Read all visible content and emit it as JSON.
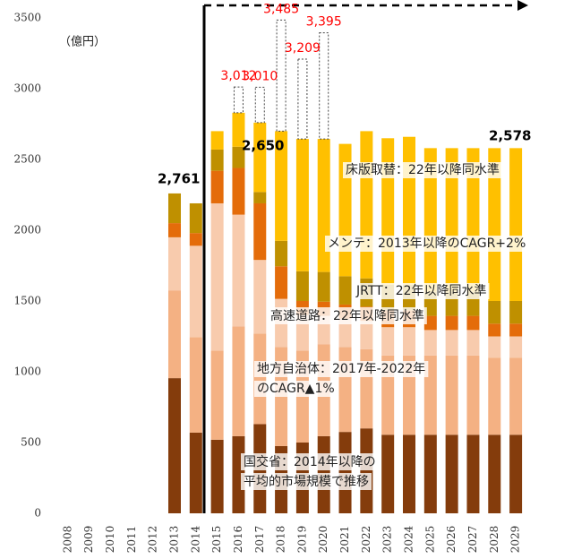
{
  "chart_data": {
    "type": "stacked_bar",
    "unit_label": "（億円）",
    "categories": [
      "2008",
      "2009",
      "2010",
      "2011",
      "2012",
      "2013",
      "2014",
      "2015",
      "2016",
      "2017",
      "2018",
      "2019",
      "2020",
      "2021",
      "2022",
      "2023",
      "2024",
      "2025",
      "2026",
      "2027",
      "2028",
      "2029"
    ],
    "series": [
      {
        "color": "#843C0C",
        "values": [
          null,
          null,
          null,
          null,
          null,
          955,
          570,
          520,
          545,
          630,
          475,
          500,
          545,
          575,
          600,
          555,
          555,
          555,
          555,
          555,
          555,
          555
        ]
      },
      {
        "color": "#F4B183",
        "values": [
          null,
          null,
          null,
          null,
          null,
          620,
          675,
          630,
          775,
          640,
          700,
          650,
          650,
          600,
          560,
          560,
          560,
          560,
          560,
          560,
          545,
          545
        ]
      },
      {
        "color": "#F8CBAD",
        "values": [
          null,
          null,
          null,
          null,
          null,
          375,
          645,
          1040,
          790,
          520,
          340,
          250,
          200,
          200,
          200,
          200,
          200,
          180,
          180,
          180,
          150,
          150
        ]
      },
      {
        "color": "#E46C0A",
        "values": [
          null,
          null,
          null,
          null,
          null,
          100,
          90,
          230,
          330,
          400,
          230,
          100,
          100,
          100,
          100,
          120,
          120,
          100,
          100,
          100,
          90,
          90
        ]
      },
      {
        "color": "#BF9000",
        "values": [
          null,
          null,
          null,
          null,
          null,
          210,
          210,
          150,
          150,
          80,
          180,
          210,
          210,
          200,
          200,
          180,
          180,
          170,
          170,
          170,
          160,
          160
        ]
      },
      {
        "color": "#FFC000",
        "values": [
          null,
          null,
          null,
          null,
          null,
          0,
          0,
          130,
          240,
          490,
          775,
          935,
          940,
          935,
          1040,
          1035,
          1045,
          1015,
          1015,
          1015,
          1080,
          1080
        ]
      }
    ],
    "dashed_totals": [
      {
        "category": "2016",
        "value": 3012,
        "label": "3,012"
      },
      {
        "category": "2017",
        "value": 3010,
        "label": "3,010"
      },
      {
        "category": "2018",
        "value": 3485,
        "label": "3,485"
      },
      {
        "category": "2019",
        "value": 3209,
        "label": "3,209"
      },
      {
        "category": "2020",
        "value": 3395,
        "label": "3,395"
      }
    ],
    "dashed_color": "#FF0000",
    "annotations": [
      "2,761",
      "2,650",
      "2,578",
      "床版取替：22年以降同水準",
      "メンテ：2013年以降のCAGR+2%",
      "JRTT：22年以降同水準",
      "高速道路：22年以降同水準",
      "地方自治体：2017年-2022年",
      "のCAGR▲1%",
      "国交省：2014年以降の",
      "平均的市場規模で推移"
    ],
    "ylim": [
      0,
      3500
    ],
    "yticks": [
      0,
      500,
      1000,
      1500,
      2000,
      2500,
      3000,
      3500
    ],
    "grid": false
  }
}
